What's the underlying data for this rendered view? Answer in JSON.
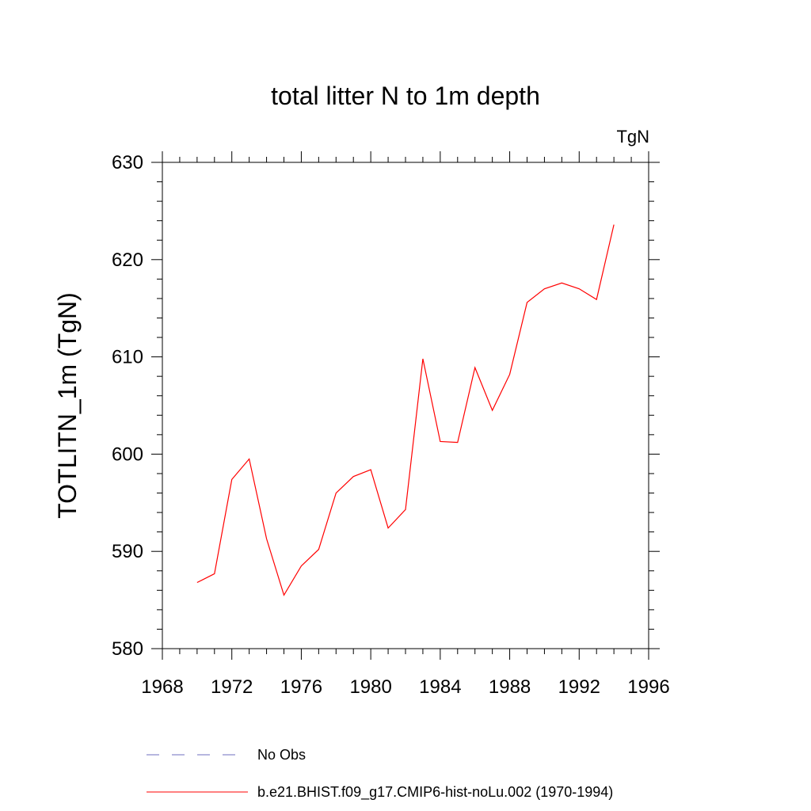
{
  "chart_data": {
    "type": "line",
    "title": "total litter N to 1m depth",
    "units_label": "TgN",
    "ylabel": "TOTLITN_1m  (TgN)",
    "xlabel": "",
    "xlim": [
      1968,
      1996
    ],
    "ylim": [
      580,
      630
    ],
    "x_ticks": [
      1968,
      1972,
      1976,
      1980,
      1984,
      1988,
      1992,
      1996
    ],
    "x_tick_labels": [
      "1968",
      "1972",
      "1976",
      "1980",
      "1984",
      "1988",
      "1992",
      "1996"
    ],
    "y_ticks": [
      580,
      590,
      600,
      610,
      620,
      630
    ],
    "y_tick_labels": [
      "580",
      "590",
      "600",
      "610",
      "620",
      "630"
    ],
    "grid": false,
    "legend_position": "bottom",
    "series": [
      {
        "name": "b.e21.BHIST.f09_g17.CMIP6-hist-noLu.002 (1970-1994)",
        "color": "#ff0000",
        "style": "solid",
        "x": [
          1970,
          1971,
          1972,
          1973,
          1974,
          1975,
          1976,
          1977,
          1978,
          1979,
          1980,
          1981,
          1982,
          1983,
          1984,
          1985,
          1986,
          1987,
          1988,
          1989,
          1990,
          1991,
          1992,
          1993,
          1994
        ],
        "values": [
          586.8,
          587.7,
          597.4,
          599.5,
          591.3,
          585.5,
          588.5,
          590.2,
          596.0,
          597.7,
          598.4,
          592.4,
          594.3,
          609.8,
          601.3,
          601.2,
          608.9,
          604.5,
          608.2,
          615.6,
          617.0,
          617.6,
          617.0,
          615.9,
          623.6
        ]
      },
      {
        "name": "No Obs",
        "color": "#6f6fbf",
        "style": "dashed",
        "x": [],
        "values": []
      }
    ]
  }
}
